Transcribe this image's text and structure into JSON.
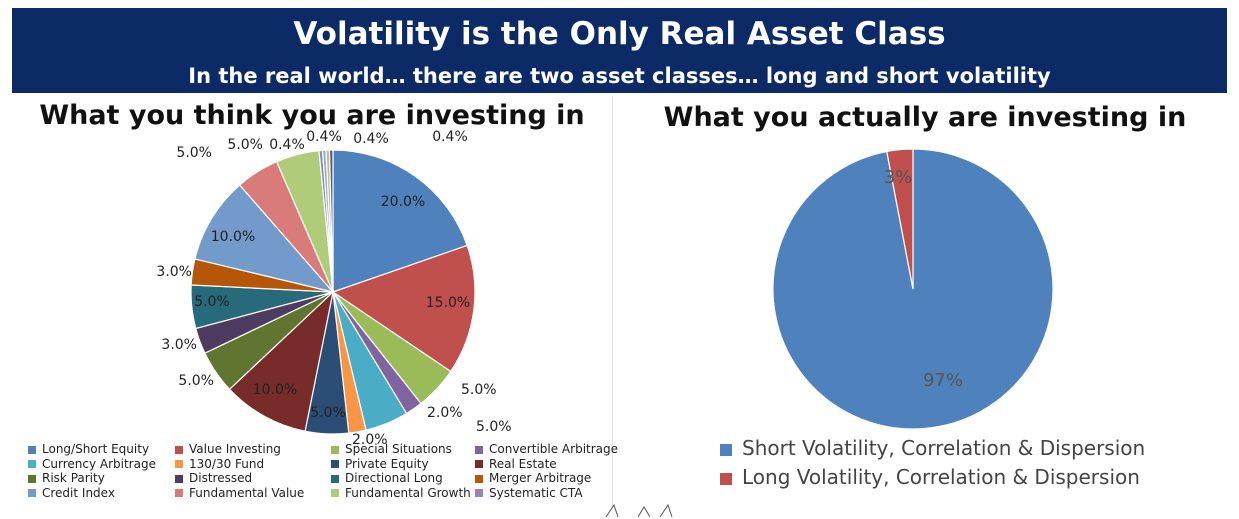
{
  "header": {
    "title": "Volatility is the Only Real Asset Class",
    "subtitle": "In the real world… there are two asset classes… long and short volatility"
  },
  "chart_data": [
    {
      "type": "pie",
      "title": "What you think you are investing in",
      "slices": [
        {
          "name": "Long/Short Equity",
          "value": 20.0,
          "label": "20.0%",
          "color": "#4f81bd"
        },
        {
          "name": "Value Investing",
          "value": 15.0,
          "label": "15.0%",
          "color": "#c0504d"
        },
        {
          "name": "Special Situations",
          "value": 5.0,
          "label": "5.0%",
          "color": "#9bbb59"
        },
        {
          "name": "Convertible Arbitrage",
          "value": 2.0,
          "label": "2.0%",
          "color": "#8064a2"
        },
        {
          "name": "Currency Arbitrage",
          "value": 5.0,
          "label": "5.0%",
          "color": "#4bacc6"
        },
        {
          "name": "130/30 Fund",
          "value": 2.0,
          "label": "2.0%",
          "color": "#f79646"
        },
        {
          "name": "Private Equity",
          "value": 5.0,
          "label": "5.0%",
          "color": "#2c4d75"
        },
        {
          "name": "Real Estate",
          "value": 10.0,
          "label": "10.0%",
          "color": "#772c2a"
        },
        {
          "name": "Risk Parity",
          "value": 5.0,
          "label": "5.0%",
          "color": "#5f7530"
        },
        {
          "name": "Distressed",
          "value": 3.0,
          "label": "3.0%",
          "color": "#4d3b62"
        },
        {
          "name": "Directional Long",
          "value": 5.0,
          "label": "5.0%",
          "color": "#276a7c"
        },
        {
          "name": "Merger Arbitrage",
          "value": 3.0,
          "label": "3.0%",
          "color": "#b65708"
        },
        {
          "name": "Credit Index",
          "value": 10.0,
          "label": "10.0%",
          "color": "#729aca"
        },
        {
          "name": "Fundamental Value",
          "value": 5.0,
          "label": "5.0%",
          "color": "#d97b78"
        },
        {
          "name": "Fundamental Growth",
          "value": 5.0,
          "label": "5.0%",
          "color": "#afcc7a"
        },
        {
          "name": "Systematic CTA",
          "value": 0.4,
          "label": "0.4%",
          "color": "#9a83b8"
        },
        {
          "name": "",
          "value": 0.4,
          "label": "0.4%",
          "color": "#6fc0d7"
        },
        {
          "name": "",
          "value": 0.4,
          "label": "0.4%",
          "color": "#f5a96a"
        },
        {
          "name": "",
          "value": 0.4,
          "label": "0.4%",
          "color": "#3a6396"
        }
      ],
      "legend": {
        "position": "bottom"
      }
    },
    {
      "type": "pie",
      "title": "What you actually are investing in",
      "slices": [
        {
          "name": "Short Volatility, Correlation & Dispersion",
          "value": 97,
          "label": "97%",
          "color": "#4f81bd"
        },
        {
          "name": "Long Volatility, Correlation & Dispersion",
          "value": 3,
          "label": "3%",
          "color": "#c0504d"
        }
      ],
      "legend": {
        "position": "bottom"
      }
    }
  ]
}
